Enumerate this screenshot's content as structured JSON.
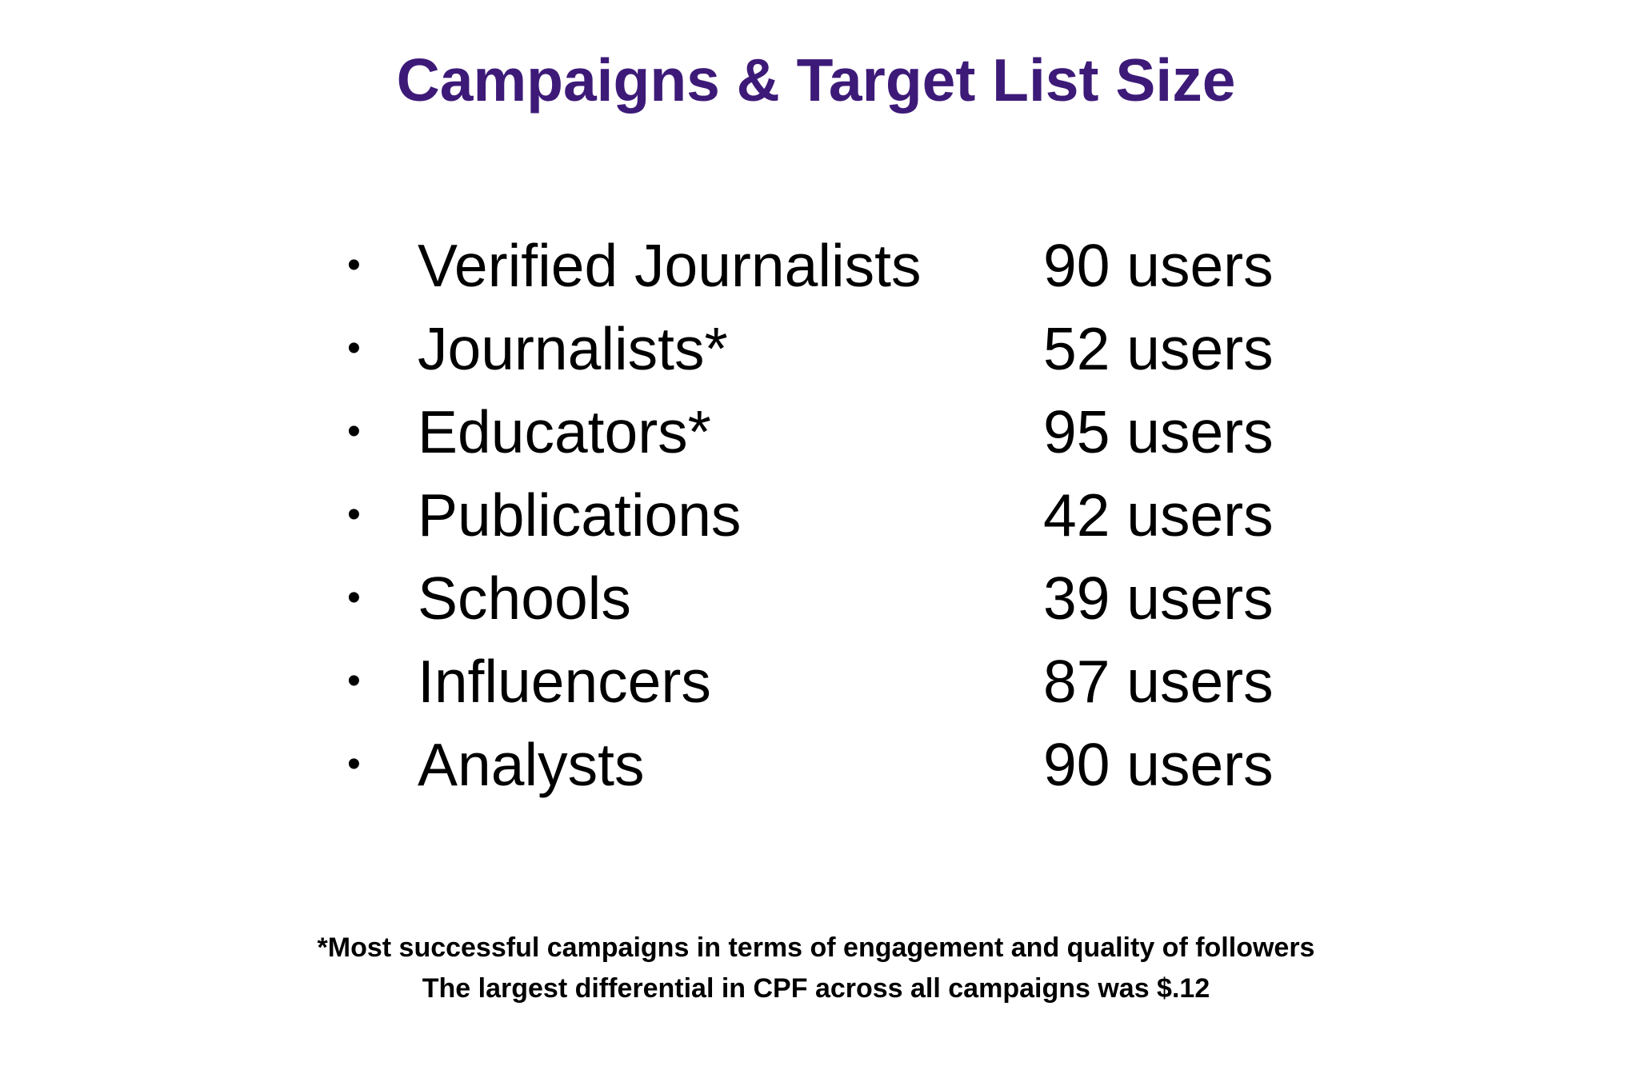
{
  "slide": {
    "title": "Campaigns & Target List Size",
    "title_color": "#3d1a78",
    "bullet_glyph": "•",
    "items": [
      {
        "label": "Verified Journalists",
        "value": "90 users"
      },
      {
        "label": "Journalists*",
        "value": "52 users"
      },
      {
        "label": "Educators*",
        "value": "95 users"
      },
      {
        "label": "Publications",
        "value": "42 users"
      },
      {
        "label": "Schools",
        "value": "39 users"
      },
      {
        "label": "Influencers",
        "value": "87 users"
      },
      {
        "label": "Analysts",
        "value": "90 users"
      }
    ],
    "footnote_lines": [
      "*Most successful campaigns in terms of engagement and quality of followers",
      "The largest differential in CPF across all campaigns was $.12"
    ]
  }
}
